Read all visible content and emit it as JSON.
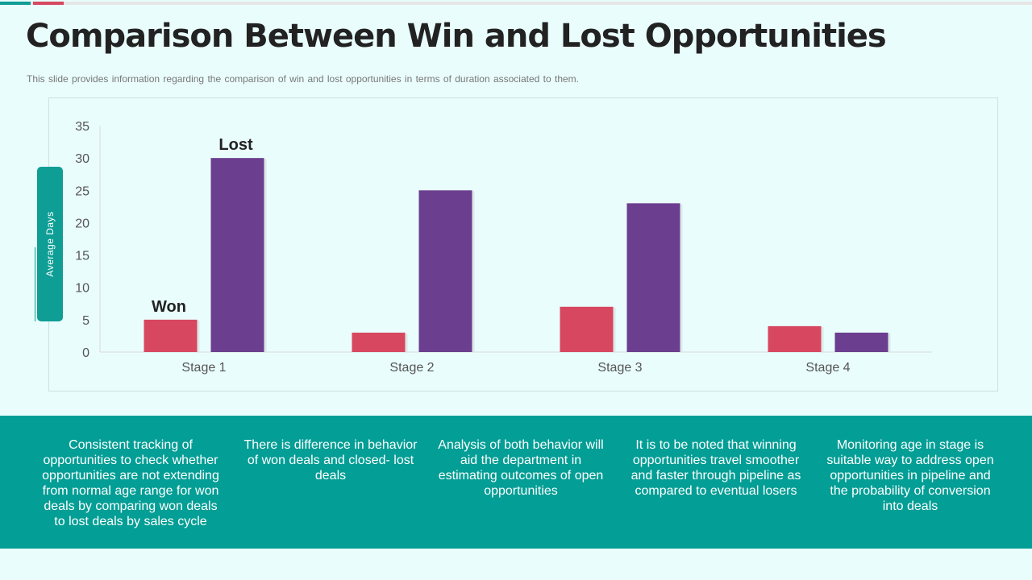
{
  "slide": {
    "title": "Comparison Between Win and Lost Opportunities",
    "subtitle": "This slide provides  information  regarding  the comparison of win and lost opportunities  in terms of duration  associated to them."
  },
  "colors": {
    "won": "#d84760",
    "lost": "#6b3e8f",
    "accent": "#0e9e95",
    "band": "#039e95"
  },
  "chart_data": {
    "type": "bar",
    "ylabel": "Average  Days",
    "categories": [
      "Stage 1",
      "Stage 2",
      "Stage 3",
      "Stage 4"
    ],
    "series": [
      {
        "name": "Won",
        "values": [
          5,
          3,
          7,
          4
        ]
      },
      {
        "name": "Lost",
        "values": [
          30,
          25,
          23,
          3
        ]
      }
    ],
    "ylim": [
      0,
      35
    ],
    "yticks": [
      0,
      5,
      10,
      15,
      20,
      25,
      30,
      35
    ],
    "annotations": [
      "Won",
      "Lost"
    ]
  },
  "notes": [
    "Consistent tracking of opportunities to check whether opportunities are not extending from normal age range for won deals by comparing won deals to lost deals by sales cycle",
    "There is difference in behavior of won deals and closed- lost deals",
    "Analysis of both behavior will aid the department in estimating outcomes of open opportunities",
    "It is to be noted that winning opportunities travel smoother and faster through pipeline as compared to eventual losers",
    "Monitoring age in stage is suitable way to address open opportunities in pipeline and the probability of conversion into deals"
  ]
}
